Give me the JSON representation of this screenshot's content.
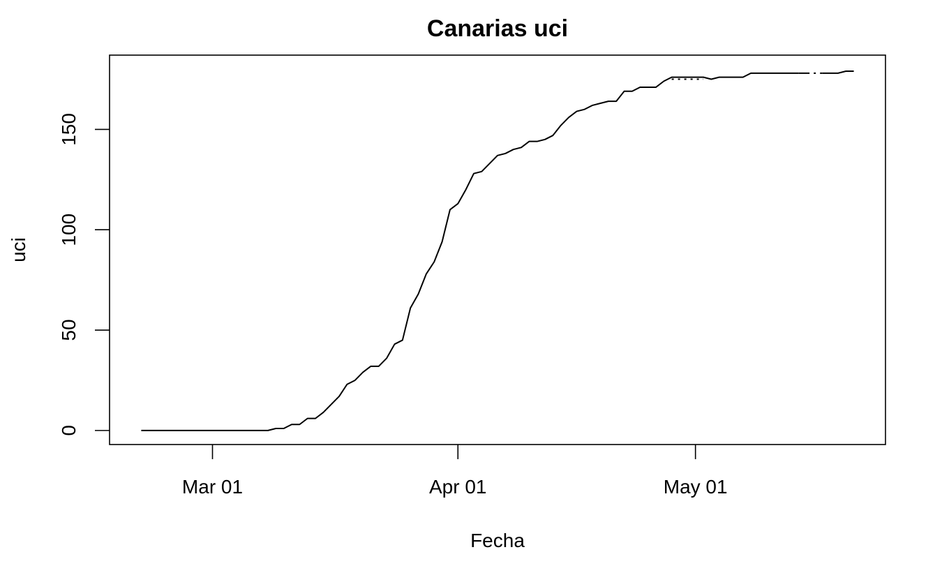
{
  "chart_data": {
    "type": "line",
    "title": "Canarias uci",
    "xlabel": "Fecha",
    "ylabel": "uci",
    "x_ticks": [
      {
        "date": "2020-03-01",
        "label": "Mar 01"
      },
      {
        "date": "2020-04-01",
        "label": "Apr 01"
      },
      {
        "date": "2020-05-01",
        "label": "May 01"
      }
    ],
    "y_ticks": [
      0,
      50,
      100,
      150
    ],
    "xlim": [
      "2020-02-17",
      "2020-05-25"
    ],
    "ylim": [
      -7,
      187
    ],
    "grid": false,
    "legend": "none",
    "line_color": "#000000",
    "series": [
      {
        "style": "solid",
        "points": [
          [
            "2020-02-21",
            0
          ],
          [
            "2020-03-08",
            0
          ],
          [
            "2020-03-09",
            1
          ],
          [
            "2020-03-10",
            1
          ],
          [
            "2020-03-11",
            3
          ],
          [
            "2020-03-12",
            3
          ],
          [
            "2020-03-13",
            6
          ],
          [
            "2020-03-14",
            6
          ],
          [
            "2020-03-15",
            9
          ],
          [
            "2020-03-16",
            13
          ],
          [
            "2020-03-17",
            17
          ],
          [
            "2020-03-18",
            23
          ],
          [
            "2020-03-19",
            25
          ],
          [
            "2020-03-20",
            29
          ],
          [
            "2020-03-21",
            32
          ],
          [
            "2020-03-22",
            32
          ],
          [
            "2020-03-23",
            36
          ],
          [
            "2020-03-24",
            43
          ],
          [
            "2020-03-25",
            45
          ],
          [
            "2020-03-26",
            61
          ],
          [
            "2020-03-27",
            68
          ],
          [
            "2020-03-28",
            78
          ],
          [
            "2020-03-29",
            84
          ],
          [
            "2020-03-30",
            94
          ],
          [
            "2020-03-31",
            110
          ],
          [
            "2020-04-01",
            113
          ],
          [
            "2020-04-02",
            120
          ],
          [
            "2020-04-03",
            128
          ],
          [
            "2020-04-04",
            129
          ],
          [
            "2020-04-05",
            133
          ],
          [
            "2020-04-06",
            137
          ],
          [
            "2020-04-07",
            138
          ],
          [
            "2020-04-08",
            140
          ],
          [
            "2020-04-09",
            141
          ],
          [
            "2020-04-10",
            144
          ],
          [
            "2020-04-11",
            144
          ],
          [
            "2020-04-12",
            145
          ],
          [
            "2020-04-13",
            147
          ],
          [
            "2020-04-14",
            152
          ],
          [
            "2020-04-15",
            156
          ],
          [
            "2020-04-16",
            159
          ],
          [
            "2020-04-17",
            160
          ],
          [
            "2020-04-18",
            162
          ],
          [
            "2020-04-19",
            163
          ],
          [
            "2020-04-20",
            164
          ],
          [
            "2020-04-21",
            164
          ],
          [
            "2020-04-22",
            169
          ],
          [
            "2020-04-23",
            169
          ],
          [
            "2020-04-24",
            171
          ],
          [
            "2020-04-25",
            171
          ],
          [
            "2020-04-26",
            171
          ],
          [
            "2020-04-27",
            174
          ],
          [
            "2020-04-28",
            176
          ],
          [
            "2020-05-01",
            176
          ],
          [
            "2020-05-02",
            176
          ],
          [
            "2020-05-03",
            175
          ],
          [
            "2020-05-04",
            176
          ],
          [
            "2020-05-07",
            176
          ],
          [
            "2020-05-08",
            178
          ],
          [
            "2020-05-14",
            178
          ]
        ]
      },
      {
        "style": "dotted",
        "points": [
          [
            "2020-04-28",
            175
          ],
          [
            "2020-05-02",
            175
          ]
        ]
      },
      {
        "style": "dashdot",
        "points": [
          [
            "2020-05-14",
            178
          ],
          [
            "2020-05-17",
            178
          ]
        ]
      },
      {
        "style": "solid",
        "points": [
          [
            "2020-05-17",
            178
          ],
          [
            "2020-05-19",
            178
          ],
          [
            "2020-05-20",
            179
          ],
          [
            "2020-05-21",
            179
          ]
        ]
      }
    ]
  }
}
